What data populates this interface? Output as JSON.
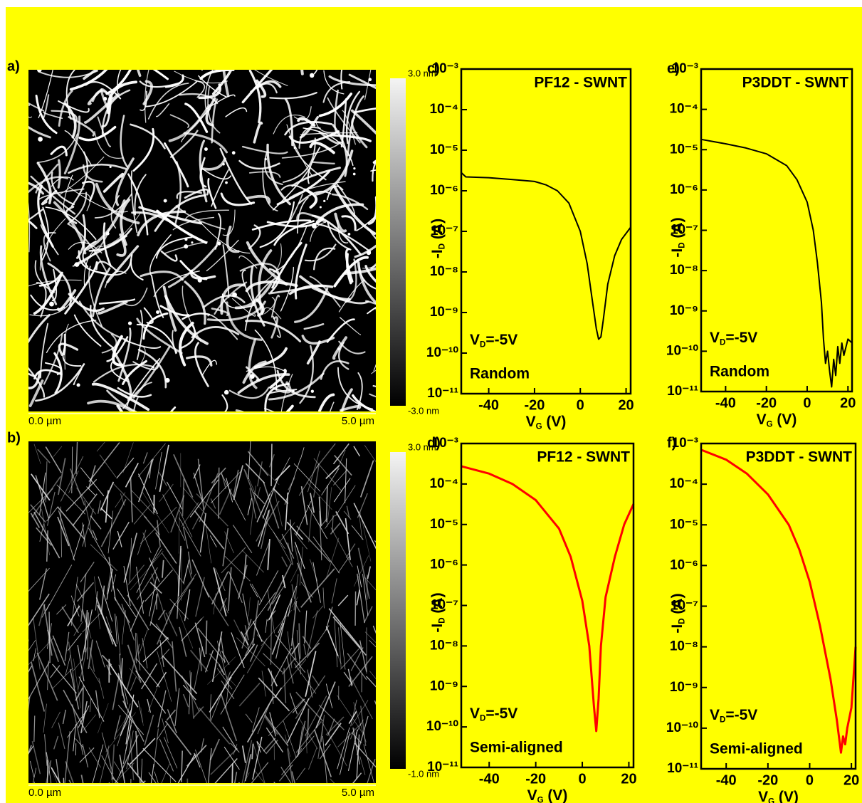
{
  "panels": [
    {
      "label": "a)",
      "scale_max": "3.0 nm",
      "scale_min": "-3.0 nm",
      "x_start": "0.0 µm",
      "x_end": "5.0 µm"
    },
    {
      "label": "b)",
      "scale_max": "3.0 nm",
      "scale_min": "-1.0 nm",
      "x_start": "0.0 µm",
      "x_end": "5.0 µm"
    }
  ],
  "chart_data": [
    {
      "type": "line",
      "panel": "c)",
      "title": "PF12 - SWNT",
      "condition": [
        "V",
        "D",
        "=-5V"
      ],
      "annotation": "Random",
      "xlabel": [
        "V",
        "G",
        " (V)"
      ],
      "ylabel": [
        "-I",
        "D",
        " (A)"
      ],
      "log_y": true,
      "xlim": [
        -52,
        22
      ],
      "xticks": [
        -40,
        -20,
        0,
        20
      ],
      "ylim": [
        1e-11,
        0.001
      ],
      "yticks": [
        {
          "value": 0.001,
          "label": "10⁻³"
        },
        {
          "value": 0.0001,
          "label": "10⁻⁴"
        },
        {
          "value": 1e-05,
          "label": "10⁻⁵"
        },
        {
          "value": 1e-06,
          "label": "10⁻⁶"
        },
        {
          "value": 1e-07,
          "label": "10⁻⁷"
        },
        {
          "value": 1e-08,
          "label": "10⁻⁸"
        },
        {
          "value": 1e-09,
          "label": "10⁻⁹"
        },
        {
          "value": 1e-10,
          "label": "10⁻¹⁰"
        },
        {
          "value": 1e-11,
          "label": "10⁻¹¹"
        }
      ],
      "series": [
        {
          "color": "#000000",
          "x": [
            -52,
            -50,
            -40,
            -30,
            -20,
            -15,
            -10,
            -5,
            0,
            3,
            5,
            7,
            8,
            9,
            10,
            12,
            15,
            18,
            22
          ],
          "values": [
            2.8e-06,
            2.2e-06,
            2.1e-06,
            1.9e-06,
            1.7e-06,
            1.4e-06,
            1e-06,
            5e-07,
            1e-07,
            1.6e-08,
            2.5e-09,
            4e-10,
            2.2e-10,
            2.5e-10,
            6.3e-10,
            5e-09,
            2.5e-08,
            6.3e-08,
            1.26e-07
          ]
        }
      ]
    },
    {
      "type": "line",
      "panel": "e)",
      "title": "P3DDT - SWNT",
      "condition": [
        "V",
        "D",
        "=-5V"
      ],
      "annotation": "Random",
      "xlabel": [
        "V",
        "G",
        " (V)"
      ],
      "ylabel": [
        "-I",
        "D",
        " (A)"
      ],
      "log_y": true,
      "xlim": [
        -52,
        22
      ],
      "xticks": [
        -40,
        -20,
        0,
        20
      ],
      "ylim": [
        1e-11,
        0.001
      ],
      "yticks": [
        {
          "value": 0.001,
          "label": "10⁻³"
        },
        {
          "value": 0.0001,
          "label": "10⁻⁴"
        },
        {
          "value": 1e-05,
          "label": "10⁻⁵"
        },
        {
          "value": 1e-06,
          "label": "10⁻⁶"
        },
        {
          "value": 1e-07,
          "label": "10⁻⁷"
        },
        {
          "value": 1e-08,
          "label": "10⁻⁸"
        },
        {
          "value": 1e-09,
          "label": "10⁻⁹"
        },
        {
          "value": 1e-10,
          "label": "10⁻¹⁰"
        },
        {
          "value": 1e-11,
          "label": "10⁻¹¹"
        }
      ],
      "series": [
        {
          "color": "#000000",
          "x": [
            -52,
            -40,
            -30,
            -20,
            -10,
            -5,
            0,
            3,
            5,
            7,
            8,
            9,
            10,
            11,
            12,
            13,
            14,
            15,
            16,
            17,
            18,
            20,
            22
          ],
          "values": [
            1.8e-05,
            1.4e-05,
            1.1e-05,
            7.9e-06,
            4e-06,
            1.8e-06,
            5e-07,
            1e-07,
            1.6e-08,
            1.6e-09,
            2e-10,
            5e-11,
            1e-10,
            3.2e-11,
            1.3e-11,
            6.3e-11,
            2.5e-11,
            1.3e-10,
            5e-11,
            1.6e-10,
            7.9e-11,
            2e-10,
            1.6e-10
          ]
        }
      ]
    },
    {
      "type": "line",
      "panel": "d)",
      "title": "PF12 - SWNT",
      "condition": [
        "V",
        "D",
        "=-5V"
      ],
      "annotation": "Semi-aligned",
      "xlabel": [
        "V",
        "G",
        " (V)"
      ],
      "ylabel": [
        "-I",
        "D",
        " (A)"
      ],
      "log_y": true,
      "xlim": [
        -52,
        22
      ],
      "xticks": [
        -40,
        -20,
        0,
        20
      ],
      "ylim": [
        1e-11,
        0.001
      ],
      "yticks": [
        {
          "value": 0.001,
          "label": "10⁻³"
        },
        {
          "value": 0.0001,
          "label": "10⁻⁴"
        },
        {
          "value": 1e-05,
          "label": "10⁻⁵"
        },
        {
          "value": 1e-06,
          "label": "10⁻⁶"
        },
        {
          "value": 1e-07,
          "label": "10⁻⁷"
        },
        {
          "value": 1e-08,
          "label": "10⁻⁸"
        },
        {
          "value": 1e-09,
          "label": "10⁻⁹"
        },
        {
          "value": 1e-10,
          "label": "10⁻¹⁰"
        },
        {
          "value": 1e-11,
          "label": "10⁻¹¹"
        }
      ],
      "series": [
        {
          "color": "#ff0000",
          "x": [
            -52,
            -40,
            -30,
            -20,
            -10,
            -5,
            0,
            3,
            5,
            6,
            7,
            8,
            10,
            14,
            18,
            22
          ],
          "values": [
            0.000275,
            0.00018,
            0.0001,
            4e-05,
            7.9e-06,
            1.6e-06,
            1.3e-07,
            1e-08,
            3.2e-10,
            7.9e-11,
            5e-10,
            1e-08,
            1.6e-07,
            1.6e-06,
            1e-05,
            3.2e-05
          ]
        }
      ]
    },
    {
      "type": "line",
      "panel": "f)",
      "title": "P3DDT - SWNT",
      "condition": [
        "V",
        "D",
        "=-5V"
      ],
      "annotation": "Semi-aligned",
      "xlabel": [
        "V",
        "G",
        " (V)"
      ],
      "ylabel": [
        "-I",
        "D",
        " (A)"
      ],
      "log_y": true,
      "xlim": [
        -52,
        22
      ],
      "xticks": [
        -40,
        -20,
        0,
        20
      ],
      "ylim": [
        1e-11,
        0.001
      ],
      "yticks": [
        {
          "value": 0.001,
          "label": "10⁻³"
        },
        {
          "value": 0.0001,
          "label": "10⁻⁴"
        },
        {
          "value": 1e-05,
          "label": "10⁻⁵"
        },
        {
          "value": 1e-06,
          "label": "10⁻⁶"
        },
        {
          "value": 1e-07,
          "label": "10⁻⁷"
        },
        {
          "value": 1e-08,
          "label": "10⁻⁸"
        },
        {
          "value": 1e-09,
          "label": "10⁻⁹"
        },
        {
          "value": 1e-10,
          "label": "10⁻¹⁰"
        },
        {
          "value": 1e-11,
          "label": "10⁻¹¹"
        }
      ],
      "series": [
        {
          "color": "#ff0000",
          "x": [
            -52,
            -40,
            -30,
            -20,
            -10,
            -5,
            0,
            5,
            10,
            13,
            15,
            16,
            17,
            18,
            20,
            22
          ],
          "values": [
            0.0007,
            0.0004,
            0.00018,
            5.6e-05,
            1e-05,
            2.5e-06,
            4e-07,
            3.2e-08,
            1.6e-09,
            1.6e-10,
            2.5e-11,
            6.3e-11,
            4e-11,
            1e-10,
            3.2e-10,
            1e-08
          ]
        }
      ]
    }
  ]
}
